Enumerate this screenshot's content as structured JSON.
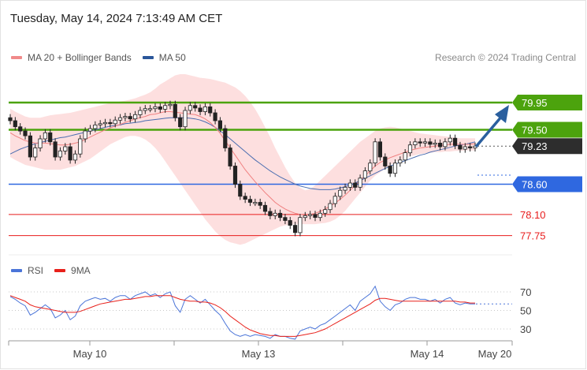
{
  "header": {
    "timestamp": "Tuesday, May 14, 2024 7:13:49 AM CET",
    "credit": "Research © 2024 Trading Central"
  },
  "legend_main": [
    {
      "label": "MA 20 + Bollinger Bands",
      "color": "#f08a8a"
    },
    {
      "label": "MA 50",
      "color": "#2b579a"
    }
  ],
  "legend_rsi": [
    {
      "label": "RSI",
      "color": "#4a74d8"
    },
    {
      "label": "9MA",
      "color": "#e8201a"
    }
  ],
  "chart_data": [
    {
      "type": "candlestick",
      "y_range": [
        77.55,
        80.25
      ],
      "levels": [
        {
          "value": 79.95,
          "label": "79.95",
          "style": "resistance",
          "color": "#4ca30d"
        },
        {
          "value": 79.5,
          "label": "79.50",
          "style": "resistance",
          "color": "#4ca30d"
        },
        {
          "value": 79.23,
          "label": "79.23",
          "style": "current",
          "color": "#222222"
        },
        {
          "value": 78.6,
          "label": "78.60",
          "style": "support",
          "color": "#2f68e0"
        },
        {
          "value": 78.1,
          "label": "78.10",
          "style": "support-minor",
          "color": "#e81c1c"
        },
        {
          "value": 77.75,
          "label": "77.75",
          "style": "support-minor",
          "color": "#e81c1c"
        }
      ],
      "close": [
        79.65,
        79.55,
        79.48,
        79.4,
        79.05,
        79.2,
        79.35,
        79.45,
        79.3,
        79.05,
        79.15,
        79.22,
        79.0,
        79.1,
        79.35,
        79.48,
        79.52,
        79.58,
        79.6,
        79.62,
        79.6,
        79.66,
        79.7,
        79.72,
        79.68,
        79.75,
        79.82,
        79.85,
        79.85,
        79.88,
        79.84,
        79.9,
        79.92,
        79.7,
        79.55,
        79.82,
        79.9,
        79.86,
        79.8,
        79.88,
        79.78,
        79.65,
        79.52,
        79.2,
        78.9,
        78.6,
        78.4,
        78.35,
        78.3,
        78.3,
        78.25,
        78.15,
        78.08,
        78.12,
        78.05,
        78.0,
        77.92,
        77.8,
        78.05,
        78.08,
        78.1,
        78.05,
        78.12,
        78.18,
        78.28,
        78.4,
        78.5,
        78.55,
        78.62,
        78.55,
        78.7,
        78.82,
        78.95,
        79.3,
        79.05,
        78.9,
        78.78,
        78.95,
        79.0,
        79.12,
        79.25,
        79.3,
        79.28,
        79.3,
        79.26,
        79.28,
        79.22,
        79.3,
        79.36,
        79.24,
        79.18,
        79.22,
        79.2,
        79.23
      ],
      "ma20": [
        79.45,
        79.4,
        79.36,
        79.32,
        79.3,
        79.28,
        79.28,
        79.28,
        79.27,
        79.26,
        79.25,
        79.25,
        79.26,
        79.28,
        79.3,
        79.34,
        79.38,
        79.42,
        79.46,
        79.5,
        79.53,
        79.56,
        79.59,
        79.62,
        79.65,
        79.68,
        79.7,
        79.72,
        79.75,
        79.76,
        79.78,
        79.8,
        79.8,
        79.79,
        79.78,
        79.77,
        79.76,
        79.75,
        79.72,
        79.68,
        79.62,
        79.54,
        79.44,
        79.32,
        79.2,
        79.08,
        78.96,
        78.84,
        78.74,
        78.64,
        78.55,
        78.46,
        78.38,
        78.3,
        78.24,
        78.19,
        78.15,
        78.12,
        78.1,
        78.09,
        78.1,
        78.12,
        78.15,
        78.19,
        78.24,
        78.29,
        78.35,
        78.42,
        78.5,
        78.58,
        78.66,
        78.74,
        78.82,
        78.9,
        78.96,
        79.0,
        79.04,
        79.07,
        79.1,
        79.13,
        79.16,
        79.18,
        79.2,
        79.21,
        79.22,
        79.23,
        79.24,
        79.25,
        79.26,
        79.26,
        79.26,
        79.26,
        79.26,
        79.27
      ],
      "ma50": [
        79.1,
        79.14,
        79.18,
        79.21,
        79.24,
        79.27,
        79.29,
        79.31,
        79.33,
        79.35,
        79.37,
        79.38,
        79.4,
        79.42,
        79.44,
        79.46,
        79.48,
        79.5,
        79.52,
        79.54,
        79.56,
        79.57,
        79.58,
        79.6,
        79.61,
        79.62,
        79.63,
        79.65,
        79.66,
        79.67,
        79.68,
        79.69,
        79.7,
        79.7,
        79.7,
        79.7,
        79.69,
        79.68,
        79.66,
        79.63,
        79.59,
        79.54,
        79.48,
        79.42,
        79.35,
        79.28,
        79.21,
        79.14,
        79.07,
        79.0,
        78.94,
        78.88,
        78.82,
        78.77,
        78.72,
        78.68,
        78.64,
        78.6,
        78.57,
        78.55,
        78.53,
        78.52,
        78.51,
        78.51,
        78.51,
        78.52,
        78.54,
        78.56,
        78.59,
        78.62,
        78.66,
        78.7,
        78.74,
        78.78,
        78.82,
        78.86,
        78.9,
        78.93,
        78.96,
        78.99,
        79.02,
        79.05,
        79.08,
        79.1,
        79.13,
        79.15,
        79.17,
        79.19,
        79.21,
        79.23,
        79.25,
        79.26,
        79.28,
        79.3
      ],
      "bb_upper": [
        79.85,
        79.8,
        79.76,
        79.72,
        79.7,
        79.7,
        79.7,
        79.72,
        79.74,
        79.75,
        79.76,
        79.77,
        79.78,
        79.8,
        79.82,
        79.84,
        79.86,
        79.88,
        79.9,
        79.92,
        79.94,
        79.95,
        79.97,
        79.98,
        80.0,
        80.02,
        80.05,
        80.08,
        80.12,
        80.18,
        80.25,
        80.3,
        80.35,
        80.4,
        80.42,
        80.42,
        80.4,
        80.38,
        80.36,
        80.35,
        80.34,
        80.32,
        80.3,
        80.28,
        80.24,
        80.2,
        80.14,
        80.06,
        79.96,
        79.84,
        79.7,
        79.54,
        79.38,
        79.2,
        79.04,
        78.88,
        78.74,
        78.62,
        78.54,
        78.5,
        78.52,
        78.58,
        78.66,
        78.74,
        78.82,
        78.9,
        78.98,
        79.06,
        79.14,
        79.22,
        79.3,
        79.36,
        79.42,
        79.48,
        79.52,
        79.54,
        79.55,
        79.54,
        79.52,
        79.5,
        79.48,
        79.46,
        79.44,
        79.43,
        79.42,
        79.41,
        79.4,
        79.39,
        79.38,
        79.37,
        79.36,
        79.36,
        79.36,
        79.36
      ],
      "bb_lower": [
        79.05,
        79.0,
        78.96,
        78.92,
        78.9,
        78.88,
        78.86,
        78.84,
        78.84,
        78.84,
        78.84,
        78.86,
        78.88,
        78.9,
        78.94,
        78.98,
        79.02,
        79.08,
        79.14,
        79.2,
        79.26,
        79.3,
        79.34,
        79.38,
        79.4,
        79.4,
        79.38,
        79.34,
        79.28,
        79.2,
        79.1,
        78.98,
        78.86,
        78.74,
        78.62,
        78.5,
        78.38,
        78.26,
        78.14,
        78.02,
        77.92,
        77.82,
        77.74,
        77.68,
        77.64,
        77.62,
        77.6,
        77.62,
        77.66,
        77.7,
        77.74,
        77.78,
        77.82,
        77.86,
        77.9,
        77.92,
        77.93,
        77.94,
        77.94,
        77.94,
        77.94,
        77.94,
        77.95,
        77.96,
        77.98,
        78.02,
        78.08,
        78.16,
        78.26,
        78.36,
        78.46,
        78.56,
        78.66,
        78.74,
        78.8,
        78.86,
        78.92,
        78.96,
        79.0,
        79.04,
        79.06,
        79.08,
        79.1,
        79.11,
        79.12,
        79.13,
        79.13,
        79.14,
        79.14,
        79.15,
        79.15,
        79.16,
        79.16,
        79.16
      ]
    },
    {
      "type": "line",
      "name_series": [
        "RSI",
        "9MA"
      ],
      "y_range": [
        20,
        80
      ],
      "yticks": [
        70,
        50,
        30
      ],
      "series": [
        {
          "name": "RSI",
          "values": [
            65,
            62,
            58,
            55,
            45,
            48,
            52,
            56,
            52,
            42,
            45,
            50,
            40,
            44,
            55,
            60,
            62,
            64,
            62,
            63,
            60,
            64,
            66,
            66,
            62,
            66,
            68,
            70,
            66,
            68,
            64,
            68,
            70,
            55,
            48,
            62,
            66,
            62,
            58,
            62,
            56,
            50,
            45,
            36,
            28,
            24,
            22,
            24,
            22,
            24,
            23,
            22,
            20,
            24,
            22,
            22,
            20,
            19,
            28,
            30,
            32,
            30,
            34,
            36,
            40,
            44,
            48,
            52,
            56,
            50,
            60,
            64,
            68,
            76,
            60,
            54,
            50,
            56,
            58,
            62,
            64,
            64,
            62,
            62,
            60,
            62,
            58,
            62,
            64,
            58,
            56,
            58,
            57,
            57
          ]
        },
        {
          "name": "9MA",
          "values": [
            66,
            64,
            62,
            60,
            56,
            54,
            53,
            52,
            51,
            50,
            49,
            48,
            48,
            48,
            49,
            51,
            53,
            55,
            57,
            58,
            59,
            60,
            61,
            62,
            62,
            63,
            64,
            65,
            65,
            66,
            66,
            66,
            66,
            64,
            62,
            61,
            60,
            60,
            59,
            59,
            58,
            56,
            53,
            49,
            44,
            40,
            36,
            32,
            29,
            27,
            25,
            24,
            23,
            23,
            22,
            22,
            22,
            22,
            23,
            24,
            25,
            26,
            28,
            30,
            33,
            36,
            39,
            42,
            45,
            48,
            51,
            54,
            57,
            61,
            63,
            63,
            62,
            61,
            60,
            60,
            60,
            60,
            60,
            60,
            60,
            60,
            60,
            60,
            60,
            60,
            59,
            59,
            58,
            58
          ]
        }
      ]
    }
  ],
  "xaxis": {
    "ticks": [
      "May 10",
      "May 13",
      "May 14",
      "May 20"
    ]
  }
}
